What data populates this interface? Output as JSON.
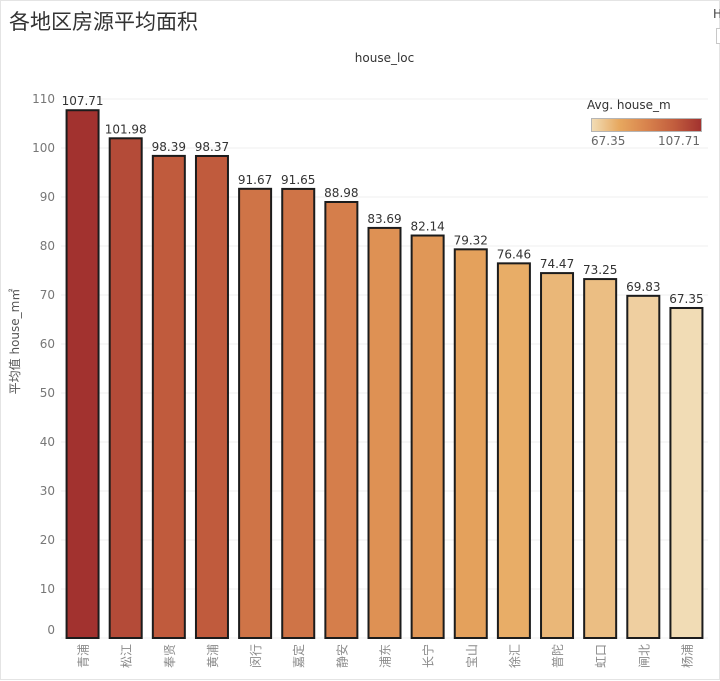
{
  "chart_data": {
    "type": "bar",
    "title": "各地区房源平均面积",
    "xlabel": "house_loc",
    "ylabel": "平均值 house_m㎡",
    "categories": [
      "青浦",
      "松江",
      "奉贤",
      "黄浦",
      "闵行",
      "嘉定",
      "静安",
      "浦东",
      "长宁",
      "宝山",
      "徐汇",
      "普陀",
      "虹口",
      "闸北",
      "杨浦"
    ],
    "values": [
      107.71,
      101.98,
      98.39,
      98.37,
      91.67,
      91.65,
      88.98,
      83.69,
      82.14,
      79.32,
      76.46,
      74.47,
      73.25,
      69.83,
      67.35
    ],
    "ylim": [
      0,
      110
    ],
    "yticks": [
      0,
      10,
      20,
      30,
      40,
      50,
      60,
      70,
      80,
      90,
      100,
      110
    ],
    "grid": true,
    "legend": {
      "title": "Avg. house_m",
      "min": 67.35,
      "max": 107.71,
      "position": "top-right"
    },
    "color_gradient": [
      "#f1dcb5",
      "#e7a85f",
      "#d8834d",
      "#c25e3e",
      "#a2322f"
    ],
    "bar_outline_color": "#1c1c1c"
  },
  "side_panel": {
    "label": "H"
  }
}
